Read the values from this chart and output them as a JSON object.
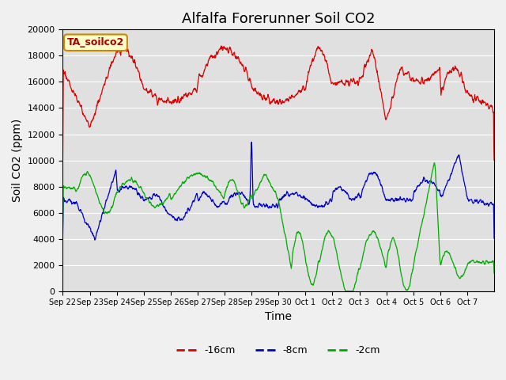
{
  "title": "Alfalfa Forerunner Soil CO2",
  "ylabel": "Soil CO2 (ppm)",
  "xlabel": "Time",
  "annotation": "TA_soilco2",
  "ylim": [
    0,
    20000
  ],
  "yticks": [
    0,
    2000,
    4000,
    6000,
    8000,
    10000,
    12000,
    14000,
    16000,
    18000,
    20000
  ],
  "xtick_labels": [
    "Sep 22",
    "Sep 23",
    "Sep 24",
    "Sep 25",
    "Sep 26",
    "Sep 27",
    "Sep 28",
    "Sep 29",
    "Sep 30",
    "Oct 1",
    "Oct 2",
    "Oct 3",
    "Oct 4",
    "Oct 5",
    "Oct 6",
    "Oct 7"
  ],
  "colors": {
    "neg16cm": "#dd0000",
    "neg8cm": "#0000cc",
    "neg2cm": "#00aa00"
  },
  "legend": [
    "-16cm",
    "-8cm",
    "-2cm"
  ],
  "fig_bg": "#f0f0f0",
  "plot_bg": "#e0e0e0",
  "title_fontsize": 13,
  "label_fontsize": 10,
  "tick_fontsize": 7
}
